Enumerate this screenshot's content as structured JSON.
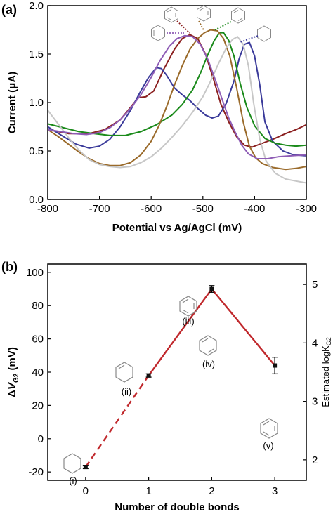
{
  "panel_a": {
    "label": "(a)",
    "xlabel": "Potential vs Ag/AgCl (mV)",
    "ylabel": "Current (μA)"
  },
  "panel_b": {
    "label": "(b)",
    "xlabel": "Number of double bonds",
    "ylabel": "ΔV_G2 (mV)",
    "ylabel2": "Estimated logK_G2",
    "point_labels": [
      "(i)",
      "(ii)",
      "(iii)",
      "(iv)",
      "(v)"
    ]
  },
  "chart_data": [
    {
      "type": "line",
      "xlim": [
        -800,
        -300
      ],
      "ylim": [
        0.0,
        2.0
      ],
      "xticks": [
        -800,
        -700,
        -600,
        -500,
        -400,
        -300
      ],
      "yticks": [
        0.0,
        0.5,
        1.0,
        1.5,
        2.0
      ],
      "xtick_labels": [
        "-800",
        "-700",
        "-600",
        "-500",
        "-400",
        "-300"
      ],
      "ytick_labels": [
        "0.0",
        "0.5",
        "1.0",
        "1.5",
        "2.0"
      ],
      "legend": "none",
      "series": [
        {
          "color": "#8B2020",
          "points": [
            [
              -800,
              0.72
            ],
            [
              -760,
              0.68
            ],
            [
              -720,
              0.68
            ],
            [
              -690,
              0.72
            ],
            [
              -660,
              0.82
            ],
            [
              -640,
              0.95
            ],
            [
              -625,
              1.05
            ],
            [
              -610,
              1.06
            ],
            [
              -595,
              1.12
            ],
            [
              -575,
              1.35
            ],
            [
              -555,
              1.55
            ],
            [
              -540,
              1.66
            ],
            [
              -525,
              1.7
            ],
            [
              -510,
              1.66
            ],
            [
              -495,
              1.5
            ],
            [
              -480,
              1.25
            ],
            [
              -465,
              0.98
            ],
            [
              -450,
              0.8
            ],
            [
              -435,
              0.65
            ],
            [
              -420,
              0.56
            ],
            [
              -405,
              0.54
            ],
            [
              -385,
              0.58
            ],
            [
              -365,
              0.62
            ],
            [
              -340,
              0.68
            ],
            [
              -320,
              0.72
            ],
            [
              -300,
              0.77
            ]
          ]
        },
        {
          "color": "#3A3A9A",
          "points": [
            [
              -800,
              0.75
            ],
            [
              -770,
              0.65
            ],
            [
              -745,
              0.57
            ],
            [
              -720,
              0.53
            ],
            [
              -700,
              0.55
            ],
            [
              -680,
              0.62
            ],
            [
              -660,
              0.75
            ],
            [
              -640,
              0.92
            ],
            [
              -620,
              1.12
            ],
            [
              -605,
              1.26
            ],
            [
              -590,
              1.36
            ],
            [
              -580,
              1.35
            ],
            [
              -570,
              1.28
            ],
            [
              -555,
              1.15
            ],
            [
              -540,
              1.08
            ],
            [
              -525,
              1.02
            ],
            [
              -510,
              0.94
            ],
            [
              -495,
              0.87
            ],
            [
              -482,
              0.84
            ],
            [
              -470,
              0.86
            ],
            [
              -455,
              0.99
            ],
            [
              -440,
              1.22
            ],
            [
              -430,
              1.45
            ],
            [
              -420,
              1.6
            ],
            [
              -410,
              1.62
            ],
            [
              -400,
              1.48
            ],
            [
              -390,
              1.18
            ],
            [
              -380,
              0.8
            ],
            [
              -365,
              0.6
            ],
            [
              -345,
              0.5
            ],
            [
              -325,
              0.46
            ],
            [
              -300,
              0.45
            ]
          ]
        },
        {
          "color": "#1A8A1A",
          "points": [
            [
              -800,
              0.78
            ],
            [
              -770,
              0.74
            ],
            [
              -740,
              0.7
            ],
            [
              -710,
              0.68
            ],
            [
              -680,
              0.66
            ],
            [
              -650,
              0.66
            ],
            [
              -620,
              0.7
            ],
            [
              -590,
              0.77
            ],
            [
              -560,
              0.87
            ],
            [
              -540,
              0.98
            ],
            [
              -520,
              1.13
            ],
            [
              -505,
              1.3
            ],
            [
              -490,
              1.5
            ],
            [
              -478,
              1.64
            ],
            [
              -468,
              1.72
            ],
            [
              -460,
              1.72
            ],
            [
              -450,
              1.64
            ],
            [
              -440,
              1.48
            ],
            [
              -428,
              1.2
            ],
            [
              -415,
              0.95
            ],
            [
              -400,
              0.76
            ],
            [
              -380,
              0.63
            ],
            [
              -360,
              0.58
            ],
            [
              -340,
              0.56
            ],
            [
              -320,
              0.55
            ],
            [
              -300,
              0.56
            ]
          ]
        },
        {
          "color": "#9A6A2A",
          "points": [
            [
              -800,
              0.72
            ],
            [
              -780,
              0.65
            ],
            [
              -760,
              0.57
            ],
            [
              -740,
              0.49
            ],
            [
              -720,
              0.42
            ],
            [
              -700,
              0.37
            ],
            [
              -680,
              0.35
            ],
            [
              -660,
              0.35
            ],
            [
              -640,
              0.38
            ],
            [
              -620,
              0.46
            ],
            [
              -600,
              0.6
            ],
            [
              -585,
              0.76
            ],
            [
              -570,
              0.96
            ],
            [
              -555,
              1.18
            ],
            [
              -540,
              1.38
            ],
            [
              -525,
              1.55
            ],
            [
              -510,
              1.66
            ],
            [
              -497,
              1.72
            ],
            [
              -485,
              1.75
            ],
            [
              -472,
              1.74
            ],
            [
              -460,
              1.66
            ],
            [
              -448,
              1.48
            ],
            [
              -435,
              1.16
            ],
            [
              -422,
              0.8
            ],
            [
              -410,
              0.55
            ],
            [
              -398,
              0.43
            ],
            [
              -385,
              0.37
            ],
            [
              -365,
              0.33
            ],
            [
              -340,
              0.31
            ],
            [
              -320,
              0.32
            ],
            [
              -300,
              0.34
            ]
          ]
        },
        {
          "color": "#C7C7C7",
          "points": [
            [
              -800,
              0.92
            ],
            [
              -780,
              0.78
            ],
            [
              -760,
              0.64
            ],
            [
              -740,
              0.51
            ],
            [
              -720,
              0.41
            ],
            [
              -700,
              0.36
            ],
            [
              -680,
              0.34
            ],
            [
              -660,
              0.33
            ],
            [
              -640,
              0.34
            ],
            [
              -620,
              0.38
            ],
            [
              -600,
              0.44
            ],
            [
              -580,
              0.53
            ],
            [
              -560,
              0.64
            ],
            [
              -540,
              0.76
            ],
            [
              -520,
              0.9
            ],
            [
              -500,
              1.06
            ],
            [
              -485,
              1.22
            ],
            [
              -470,
              1.4
            ],
            [
              -455,
              1.56
            ],
            [
              -443,
              1.65
            ],
            [
              -433,
              1.68
            ],
            [
              -422,
              1.6
            ],
            [
              -412,
              1.38
            ],
            [
              -402,
              1.0
            ],
            [
              -390,
              0.62
            ],
            [
              -378,
              0.4
            ],
            [
              -360,
              0.27
            ],
            [
              -340,
              0.21
            ],
            [
              -320,
              0.19
            ],
            [
              -300,
              0.17
            ]
          ]
        },
        {
          "color": "#8E5CB5",
          "points": [
            [
              -800,
              0.72
            ],
            [
              -775,
              0.7
            ],
            [
              -750,
              0.68
            ],
            [
              -725,
              0.67
            ],
            [
              -700,
              0.69
            ],
            [
              -680,
              0.74
            ],
            [
              -660,
              0.82
            ],
            [
              -640,
              0.94
            ],
            [
              -620,
              1.08
            ],
            [
              -600,
              1.26
            ],
            [
              -582,
              1.44
            ],
            [
              -565,
              1.58
            ],
            [
              -550,
              1.66
            ],
            [
              -535,
              1.69
            ],
            [
              -520,
              1.68
            ],
            [
              -505,
              1.6
            ],
            [
              -490,
              1.44
            ],
            [
              -475,
              1.22
            ],
            [
              -462,
              1.02
            ],
            [
              -450,
              0.84
            ],
            [
              -438,
              0.7
            ],
            [
              -425,
              0.56
            ],
            [
              -412,
              0.47
            ],
            [
              -395,
              0.42
            ],
            [
              -375,
              0.42
            ],
            [
              -355,
              0.44
            ],
            [
              -330,
              0.45
            ],
            [
              -300,
              0.46
            ]
          ]
        }
      ]
    },
    {
      "type": "scatter",
      "x": [
        0,
        1,
        2,
        3
      ],
      "y": [
        -17,
        38,
        90,
        44
      ],
      "y_error": [
        1,
        1,
        2,
        5
      ],
      "xlim": [
        -0.6,
        3.5
      ],
      "ylim": [
        -25,
        105
      ],
      "y2lim": [
        1.65,
        5.35
      ],
      "xticks": [
        0,
        1,
        2,
        3
      ],
      "yticks": [
        -20,
        0,
        20,
        40,
        60,
        80,
        100
      ],
      "y2ticks": [
        2,
        3,
        4,
        5
      ],
      "xtick_labels": [
        "0",
        "1",
        "2",
        "3"
      ],
      "ytick_labels": [
        "-20",
        "0",
        "20",
        "40",
        "60",
        "80",
        "100"
      ],
      "y2tick_labels": [
        "2",
        "3",
        "4",
        "5"
      ],
      "line_color": "#C0282C",
      "dashed_segment": [
        0,
        1
      ],
      "grid": false,
      "legend": "none"
    }
  ]
}
